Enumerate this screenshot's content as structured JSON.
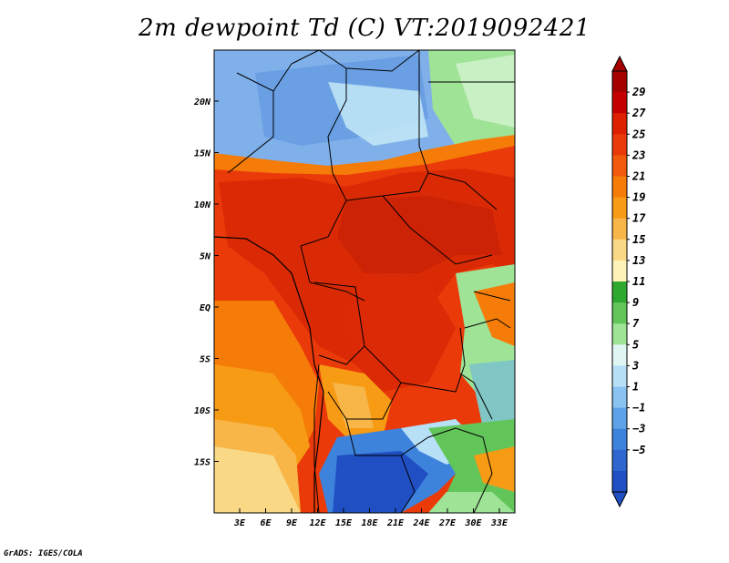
{
  "title": "2m dewpoint Td (C) VT:2019092421",
  "footer": "GrADS: IGES/COLA",
  "map": {
    "lon_ticks": [
      "3E",
      "6E",
      "9E",
      "12E",
      "15E",
      "18E",
      "21E",
      "24E",
      "27E",
      "30E",
      "33E"
    ],
    "lat_ticks": [
      "20N",
      "15N",
      "10N",
      "5N",
      "EQ",
      "5S",
      "10S",
      "15S"
    ],
    "lon_range": [
      0,
      35
    ],
    "lat_range": [
      -20,
      25
    ]
  },
  "colorbar": {
    "labels": [
      "29",
      "27",
      "25",
      "23",
      "21",
      "19",
      "17",
      "15",
      "13",
      "11",
      "9",
      "7",
      "5",
      "3",
      "1",
      "−1",
      "−3",
      "−5"
    ],
    "colors": [
      "#a50000",
      "#c40000",
      "#dd2000",
      "#ea3a0a",
      "#f15a0a",
      "#f57c08",
      "#f79a14",
      "#f8b648",
      "#f9d886",
      "#fdf3b8",
      "#2fa82f",
      "#62c55a",
      "#9ee396",
      "#dff6f2",
      "#b7e0f7",
      "#8ac2f2",
      "#5ea3e8",
      "#3e83db",
      "#2f67cf",
      "#1f4fc2"
    ]
  }
}
